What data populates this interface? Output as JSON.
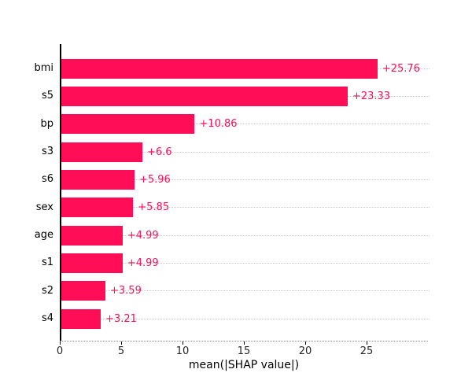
{
  "chart_data": {
    "type": "bar",
    "orientation": "horizontal",
    "title": "",
    "xlabel": "mean(|SHAP value|)",
    "ylabel": "",
    "categories": [
      "bmi",
      "s5",
      "bp",
      "s3",
      "s6",
      "sex",
      "age",
      "s1",
      "s2",
      "s4"
    ],
    "values": [
      25.76,
      23.33,
      10.86,
      6.6,
      5.96,
      5.85,
      4.99,
      4.99,
      3.59,
      3.21
    ],
    "value_labels": [
      "+25.76",
      "+23.33",
      "+10.86",
      "+6.6",
      "+5.96",
      "+5.85",
      "+4.99",
      "+4.99",
      "+3.59",
      "+3.21"
    ],
    "x_ticks": [
      0,
      5,
      10,
      15,
      20,
      25
    ],
    "xlim": [
      0,
      30
    ],
    "grid": "horizontal-dotted",
    "legend_position": "none",
    "bar_color": "#ff0d57",
    "value_label_color": "#ff0d57"
  }
}
